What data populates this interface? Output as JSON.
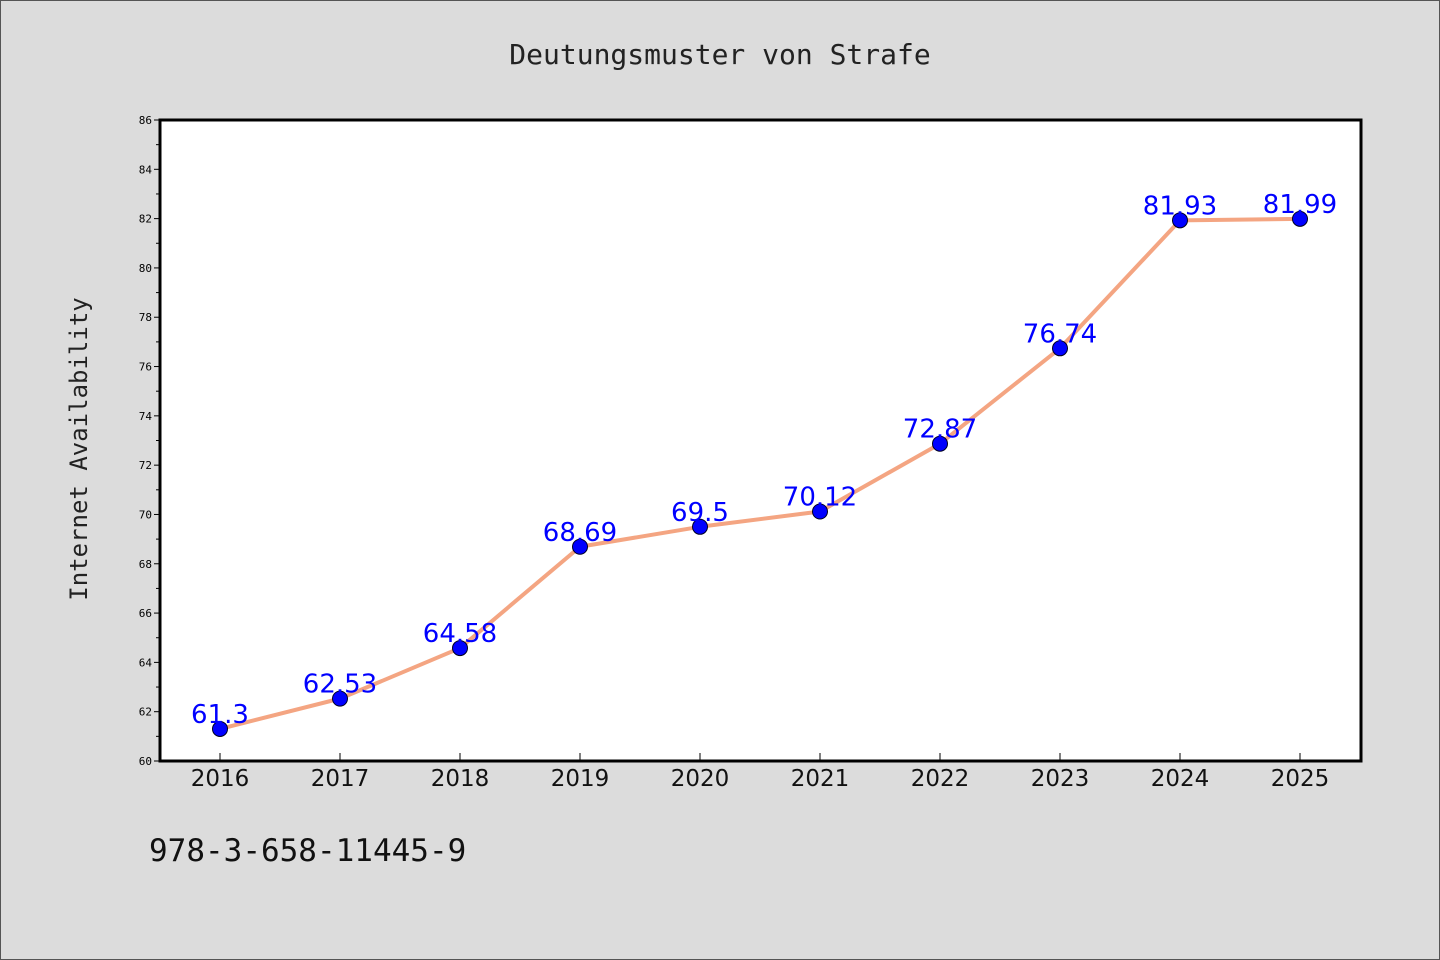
{
  "chart_data": {
    "type": "line",
    "title": "Deutungsmuster von Strafe",
    "xlabel": "",
    "ylabel": "Internet Availability",
    "categories": [
      "2016",
      "2017",
      "2018",
      "2019",
      "2020",
      "2021",
      "2022",
      "2023",
      "2024",
      "2025"
    ],
    "series": [
      {
        "values": [
          61.3,
          62.53,
          64.58,
          68.69,
          69.5,
          70.12,
          72.87,
          76.74,
          81.93,
          81.99
        ],
        "labels": [
          "61.3",
          "62.53",
          "64.58",
          "68.69",
          "69.5",
          "70.12",
          "72.87",
          "76.74",
          "81.93",
          "81.99"
        ],
        "line_color": "#f4a582",
        "marker_color": "#0000ff",
        "label_color": "#0000ff"
      }
    ],
    "ylim": [
      60,
      86
    ],
    "yticks": [
      "60",
      "62",
      "64",
      "66",
      "68",
      "70",
      "72",
      "74",
      "76",
      "78",
      "80",
      "82",
      "84",
      "86"
    ],
    "grid": false,
    "legend": "none"
  },
  "footer": {
    "isbn": "978-3-658-11445-9"
  },
  "colors": {
    "background": "#dcdcdc",
    "plot_area": "#ffffff",
    "axis": "#000000"
  }
}
